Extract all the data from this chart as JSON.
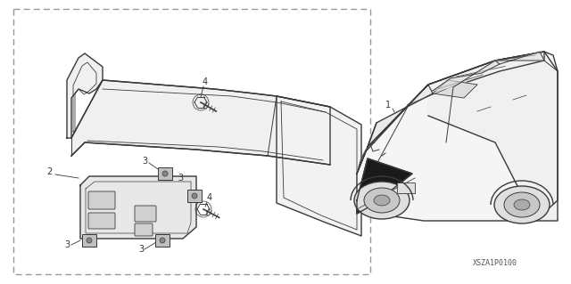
{
  "background_color": "#ffffff",
  "part_code": "XSZA1P0100",
  "line_color": "#3a3a3a",
  "dark_color": "#1a1a1a",
  "gray_color": "#888888",
  "light_gray": "#cccccc",
  "dashed_color": "#999999",
  "text_color": "#333333"
}
